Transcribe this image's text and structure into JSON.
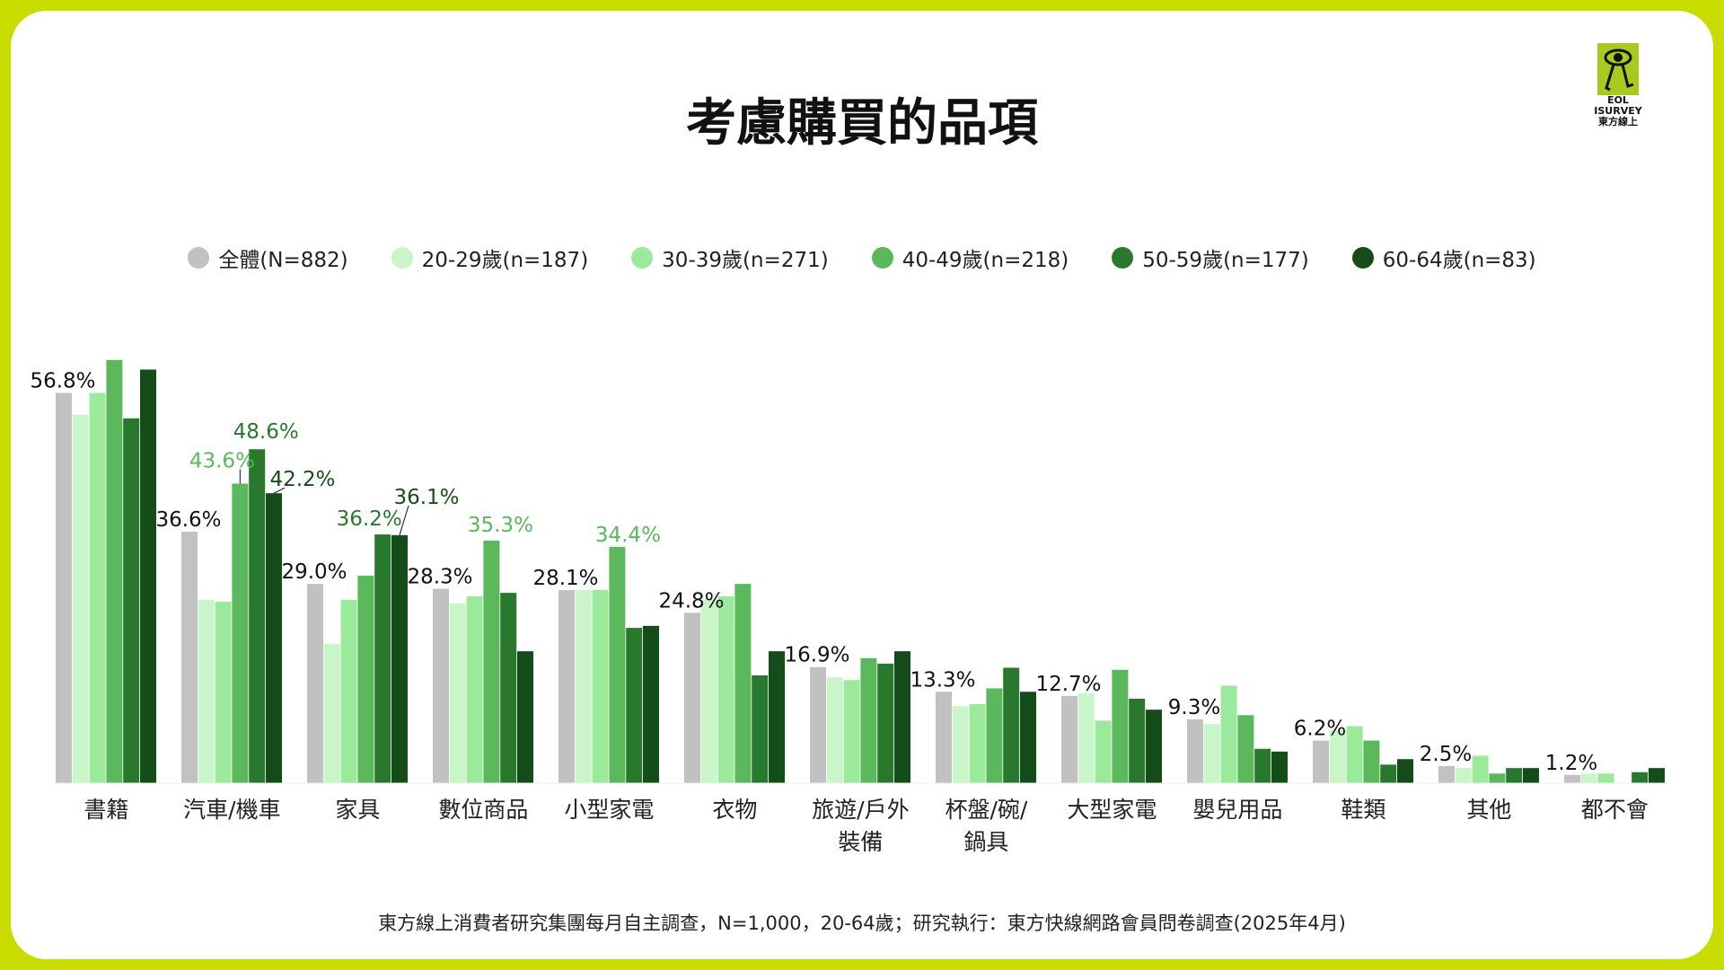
{
  "title": "考慮購買的品項",
  "logo": {
    "line1": "EOL",
    "line2": "ISURVEY",
    "line3": "東方線上"
  },
  "footer": "東方線上消費者研究集團每月自主調查，N=1,000，20-64歲；研究執行：東方快線網路會員問卷調查(2025年4月)",
  "chart_data": {
    "type": "bar",
    "title": "考慮購買的品項",
    "legend_position": "top",
    "grid": false,
    "unit": "%",
    "ylim": [
      0,
      65
    ],
    "categories": [
      [
        "書籍"
      ],
      [
        "汽車/機車"
      ],
      [
        "家具"
      ],
      [
        "數位商品"
      ],
      [
        "小型家電"
      ],
      [
        "衣物"
      ],
      [
        "旅遊/戶外",
        "裝備"
      ],
      [
        "杯盤/碗/",
        "鍋具"
      ],
      [
        "大型家電"
      ],
      [
        "嬰兒用品"
      ],
      [
        "鞋類"
      ],
      [
        "其他"
      ],
      [
        "都不會"
      ]
    ],
    "series": [
      {
        "name": "全體(N=882)",
        "color": "#c1c1c1",
        "values": [
          56.8,
          36.6,
          29.0,
          28.3,
          28.1,
          24.8,
          16.9,
          13.3,
          12.7,
          9.3,
          6.2,
          2.5,
          1.2
        ]
      },
      {
        "name": "20-29歲(n=187)",
        "color": "#c9f5c9",
        "values": [
          53.6,
          26.7,
          20.3,
          26.2,
          28.1,
          26.7,
          15.4,
          11.2,
          13.1,
          8.6,
          7.8,
          2.2,
          1.4
        ]
      },
      {
        "name": "30-39歲(n=271)",
        "color": "#9bea9b",
        "values": [
          56.8,
          26.4,
          26.7,
          27.2,
          28.1,
          27.2,
          15.0,
          11.5,
          9.1,
          14.2,
          8.3,
          4.0,
          1.4
        ]
      },
      {
        "name": "40-49歲(n=218)",
        "color": "#5cb85c",
        "values": [
          61.6,
          43.6,
          30.2,
          35.3,
          34.4,
          29.0,
          18.2,
          13.8,
          16.5,
          9.9,
          6.2,
          1.4,
          0
        ]
      },
      {
        "name": "50-59歲(n=177)",
        "color": "#28782d",
        "values": [
          53.1,
          48.6,
          36.2,
          27.7,
          22.6,
          15.7,
          17.4,
          16.8,
          12.3,
          5.0,
          2.7,
          2.2,
          1.6
        ]
      },
      {
        "name": "60-64歲(n=83)",
        "color": "#154d1a",
        "values": [
          60.2,
          42.2,
          36.1,
          19.2,
          22.9,
          19.2,
          19.2,
          13.3,
          10.7,
          4.6,
          3.5,
          2.2,
          2.2
        ]
      }
    ],
    "data_labels_series": 0,
    "annotations": [
      {
        "category": 1,
        "series": 3,
        "text": "43.6%",
        "color": "#5cb85c"
      },
      {
        "category": 1,
        "series": 4,
        "text": "48.6%",
        "color": "#28782d"
      },
      {
        "category": 1,
        "series": 5,
        "text": "42.2%",
        "color": "#154d1a"
      },
      {
        "category": 2,
        "series": 4,
        "text": "36.2%",
        "color": "#28782d"
      },
      {
        "category": 2,
        "series": 5,
        "text": "36.1%",
        "color": "#154d1a"
      },
      {
        "category": 3,
        "series": 3,
        "text": "35.3%",
        "color": "#5cb85c"
      },
      {
        "category": 4,
        "series": 3,
        "text": "34.4%",
        "color": "#5cb85c"
      }
    ]
  }
}
